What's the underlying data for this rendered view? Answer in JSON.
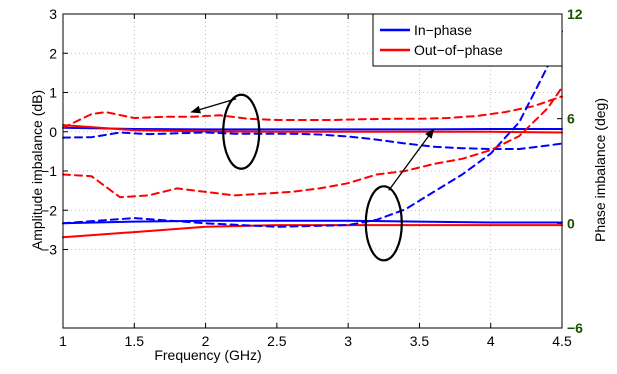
{
  "chart_data": {
    "type": "line",
    "title": "",
    "xlabel": "Frequency (GHz)",
    "ylabel_left": "Amplitude imbalance (dB)",
    "ylabel_right": "Phase imbalance (deg)",
    "xlim": [
      1,
      4.5
    ],
    "ylim_left": [
      -5,
      3
    ],
    "ylim_right": [
      -6,
      12
    ],
    "x_ticks": [
      "1",
      "1.5",
      "2",
      "2.5",
      "3",
      "3.5",
      "4",
      "4.5"
    ],
    "y_ticks_left": [
      "3",
      "2",
      "1",
      "0",
      "−1",
      "−2",
      "−3"
    ],
    "y_ticks_right": [
      "12",
      "6",
      "0",
      "−6"
    ],
    "right_tick_color": "#1a5200",
    "grid": true,
    "legend_position": "top-right",
    "legend": [
      {
        "label": "In−phase",
        "color": "#0000ff"
      },
      {
        "label": "Out−of−phase",
        "color": "#ff0000"
      }
    ],
    "series": [
      {
        "group": "In-phase",
        "axis": "left",
        "style": "solid",
        "color": "#0000ff",
        "x": [
          1.0,
          1.5,
          2.0,
          2.5,
          3.0,
          3.5,
          4.0,
          4.5
        ],
        "y": [
          0.1,
          0.07,
          0.06,
          0.06,
          0.06,
          0.06,
          0.07,
          0.07
        ]
      },
      {
        "group": "Out-of-phase",
        "axis": "left",
        "style": "solid",
        "color": "#ff0000",
        "x": [
          1.0,
          1.5,
          2.0,
          2.5,
          3.0,
          3.5,
          4.0,
          4.5
        ],
        "y": [
          0.17,
          0.04,
          0.01,
          0.0,
          0.0,
          0.0,
          0.0,
          -0.02
        ]
      },
      {
        "group": "In-phase",
        "axis": "left",
        "style": "dashed",
        "color": "#0000ff",
        "x": [
          1.0,
          1.2,
          1.4,
          1.6,
          1.8,
          2.0,
          2.2,
          2.4,
          2.6,
          2.8,
          3.0,
          3.2,
          3.4,
          3.6,
          3.8,
          4.0,
          4.2,
          4.4,
          4.5
        ],
        "y": [
          -0.15,
          -0.14,
          -0.02,
          -0.06,
          -0.04,
          -0.02,
          -0.05,
          -0.05,
          -0.05,
          -0.07,
          -0.12,
          -0.2,
          -0.3,
          -0.38,
          -0.42,
          -0.44,
          -0.44,
          -0.35,
          -0.3
        ]
      },
      {
        "group": "Out-of-phase",
        "axis": "left",
        "style": "dashed",
        "color": "#ff0000",
        "x": [
          1.0,
          1.2,
          1.3,
          1.5,
          1.7,
          1.9,
          2.1,
          2.3,
          2.5,
          2.7,
          2.9,
          3.1,
          3.3,
          3.5,
          3.7,
          3.9,
          4.1,
          4.3,
          4.5
        ],
        "y": [
          0.1,
          0.45,
          0.5,
          0.35,
          0.38,
          0.38,
          0.42,
          0.33,
          0.3,
          0.3,
          0.3,
          0.32,
          0.33,
          0.33,
          0.35,
          0.4,
          0.5,
          0.65,
          0.9
        ]
      },
      {
        "group": "In-phase",
        "axis": "right",
        "style": "solid",
        "color": "#0000ff",
        "x": [
          1.0,
          1.5,
          2.0,
          2.5,
          3.0,
          3.5,
          4.0,
          4.5
        ],
        "y": [
          0.0,
          0.1,
          0.15,
          0.15,
          0.15,
          0.1,
          0.05,
          0.05
        ]
      },
      {
        "group": "Out-of-phase",
        "axis": "right",
        "style": "solid",
        "color": "#ff0000",
        "x": [
          1.0,
          1.5,
          2.0,
          2.5,
          3.0,
          3.5,
          4.0,
          4.5
        ],
        "y": [
          -0.8,
          -0.5,
          -0.2,
          -0.1,
          -0.1,
          -0.1,
          -0.1,
          -0.1
        ]
      },
      {
        "group": "In-phase",
        "axis": "right",
        "style": "dashed",
        "color": "#0000ff",
        "x": [
          1.0,
          1.5,
          2.0,
          2.5,
          3.0,
          3.2,
          3.4,
          3.6,
          3.8,
          4.0,
          4.2,
          4.4,
          4.5
        ],
        "y": [
          0.0,
          0.3,
          0.0,
          -0.2,
          -0.1,
          0.2,
          0.8,
          1.8,
          2.8,
          4.0,
          5.8,
          9.0,
          11.0
        ]
      },
      {
        "group": "Out-of-phase",
        "axis": "right",
        "style": "dashed",
        "color": "#ff0000",
        "x": [
          1.0,
          1.2,
          1.4,
          1.6,
          1.8,
          2.0,
          2.2,
          2.4,
          2.6,
          2.8,
          3.0,
          3.2,
          3.4,
          3.6,
          3.8,
          4.0,
          4.2,
          4.4,
          4.5
        ],
        "y": [
          2.8,
          2.7,
          1.5,
          1.6,
          2.0,
          1.8,
          1.6,
          1.7,
          1.8,
          2.0,
          2.3,
          2.8,
          3.0,
          3.4,
          3.7,
          4.2,
          5.0,
          6.6,
          7.8
        ]
      }
    ],
    "annotations": [
      {
        "type": "ellipse-arrow",
        "axis": "left",
        "center": [
          2.25,
          0.0
        ],
        "arrow_to": [
          1.9,
          0.5
        ],
        "direction": "left"
      },
      {
        "type": "ellipse-arrow",
        "axis": "right",
        "center": [
          3.25,
          0.0
        ],
        "arrow_to": [
          3.6,
          5.4
        ],
        "direction": "right"
      }
    ]
  }
}
